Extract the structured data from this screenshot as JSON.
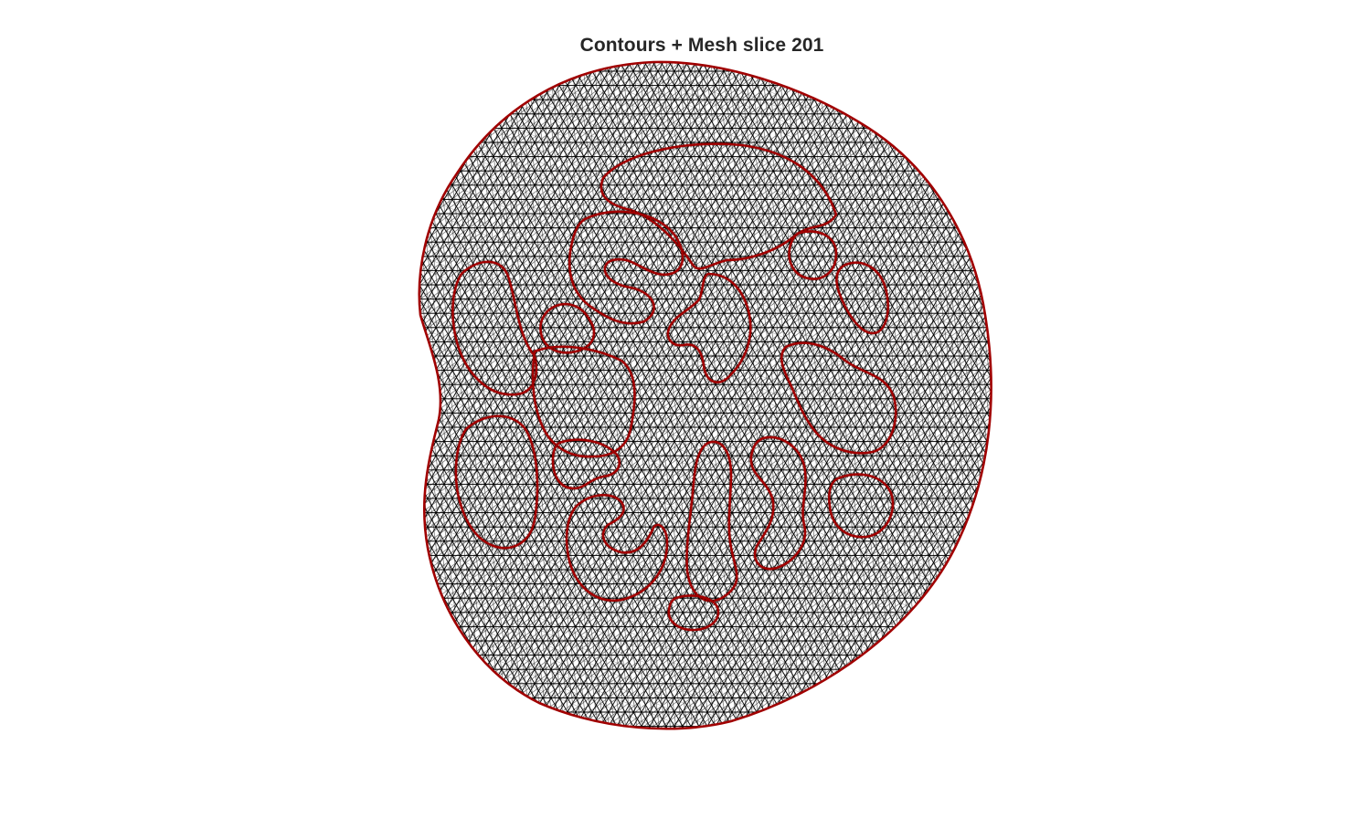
{
  "figure": {
    "title": "Contours + Mesh slice 201"
  },
  "colors": {
    "background": "#ffffff",
    "mesh_edges": "#000000",
    "contours": "#a10000",
    "title": "#262626"
  },
  "diagram": {
    "type": "triangular-mesh-with-contours",
    "outer_boundary": "closed-contour",
    "inner_regions": 17
  }
}
